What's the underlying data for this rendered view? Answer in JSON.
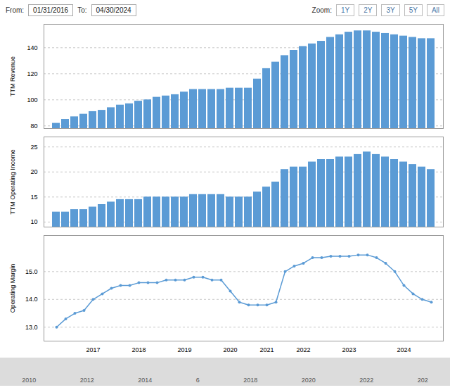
{
  "chart_data": [
    {
      "type": "bar",
      "ylabel": "TTM Revenue",
      "color": "#5B9BD5",
      "grid": true,
      "tick_labels": "y",
      "annotations": [
        "From:",
        "01/31/2016",
        "To:",
        "04/30/2024",
        "Zoom:",
        "1Y",
        "2Y",
        "3Y",
        "5Y",
        "All"
      ],
      "categories": [
        null,
        null,
        null,
        null,
        "2017",
        null,
        null,
        null,
        null,
        "2018",
        null,
        null,
        null,
        null,
        "2019",
        null,
        null,
        null,
        null,
        "2020",
        null,
        null,
        null,
        "2021",
        null,
        null,
        null,
        "2022",
        null,
        null,
        null,
        null,
        "2023",
        null,
        null,
        null,
        null,
        null,
        "2024",
        null,
        null,
        null
      ],
      "values": [
        82,
        85,
        87,
        89,
        91,
        92,
        94,
        96,
        97,
        99,
        100,
        102,
        103,
        104,
        106,
        108,
        108,
        108,
        108,
        109,
        109,
        109,
        116,
        124,
        129,
        134,
        138,
        141,
        143,
        145,
        148,
        150,
        152,
        153,
        153,
        152,
        151,
        150,
        149,
        148,
        147,
        147
      ],
      "ylim": [
        78,
        158
      ],
      "yticks": [
        80,
        100,
        120,
        140
      ]
    },
    {
      "type": "bar",
      "ylabel": "TTM Operating Income",
      "color": "#5B9BD5",
      "grid": true,
      "tick_labels": "y",
      "categories": [
        null,
        null,
        null,
        null,
        "2017",
        null,
        null,
        null,
        null,
        "2018",
        null,
        null,
        null,
        null,
        "2019",
        null,
        null,
        null,
        null,
        "2020",
        null,
        null,
        null,
        "2021",
        null,
        null,
        null,
        "2022",
        null,
        null,
        null,
        null,
        "2023",
        null,
        null,
        null,
        null,
        null,
        "2024",
        null,
        null,
        null
      ],
      "values": [
        12.0,
        12.0,
        12.5,
        12.5,
        13.0,
        13.5,
        14.0,
        14.5,
        14.5,
        14.5,
        15.0,
        15.0,
        15.0,
        15.0,
        15.0,
        15.5,
        15.5,
        15.5,
        15.5,
        15.0,
        15.0,
        15.0,
        16.0,
        17.0,
        18.0,
        20.5,
        21.0,
        21.0,
        22.0,
        22.5,
        22.5,
        23.0,
        23.0,
        23.5,
        24.0,
        23.5,
        23.0,
        22.5,
        22.0,
        21.5,
        21.0,
        20.5
      ],
      "ylim": [
        9,
        27
      ],
      "yticks": [
        10,
        15,
        20,
        25
      ]
    },
    {
      "type": "line",
      "ylabel": "Operating Margin",
      "color": "#5B9BD5",
      "grid": true,
      "marker": "circle",
      "annotations": [
        "2010",
        "2012",
        "2014",
        "6",
        "2018",
        "2020",
        "2022",
        "202"
      ],
      "categories": [
        null,
        null,
        null,
        null,
        "2017",
        null,
        null,
        null,
        null,
        "2018",
        null,
        null,
        null,
        null,
        "2019",
        null,
        null,
        null,
        null,
        "2020",
        null,
        null,
        null,
        "2021",
        null,
        null,
        null,
        "2022",
        null,
        null,
        null,
        null,
        "2023",
        null,
        null,
        null,
        null,
        null,
        "2024",
        null,
        null,
        null
      ],
      "values": [
        13.0,
        13.3,
        13.5,
        13.6,
        14.0,
        14.2,
        14.4,
        14.5,
        14.5,
        14.6,
        14.6,
        14.6,
        14.7,
        14.7,
        14.7,
        14.8,
        14.8,
        14.7,
        14.7,
        14.3,
        13.9,
        13.8,
        13.8,
        13.8,
        13.9,
        15.0,
        15.2,
        15.3,
        15.5,
        15.5,
        15.55,
        15.55,
        15.55,
        15.6,
        15.6,
        15.5,
        15.3,
        15.0,
        14.5,
        14.2,
        14.0,
        13.9
      ],
      "ylim": [
        12.5,
        16.3
      ],
      "yticks": [
        13,
        14,
        15
      ]
    }
  ]
}
